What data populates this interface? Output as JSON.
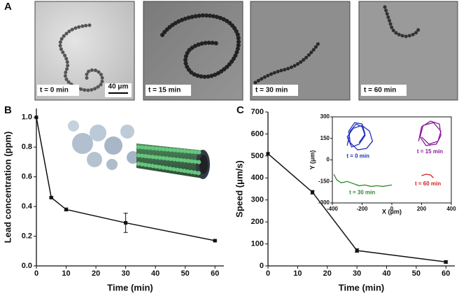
{
  "panel_a": {
    "label": "A",
    "captions": [
      "t = 0 min",
      "t = 15 min",
      "t = 30 min",
      "t = 60 min"
    ],
    "scale_bar": "40 μm"
  },
  "panel_labels": [
    "B",
    "C"
  ],
  "chart_data": [
    {
      "type": "line",
      "xlabel": "Time (min)",
      "ylabel": "Lead concentration (ppm)",
      "x": [
        0,
        5,
        10,
        30,
        60
      ],
      "values": [
        1.0,
        0.46,
        0.38,
        0.29,
        0.17
      ],
      "errors": [
        null,
        0.005,
        0.01,
        0.065,
        0.005
      ],
      "color": "#111111",
      "xlim": [
        0,
        63
      ],
      "ylim": [
        0,
        1.06
      ],
      "xticks": [
        0,
        10,
        20,
        30,
        40,
        50,
        60
      ],
      "yticks": [
        {
          "value": 0,
          "label": "0.0"
        },
        {
          "value": 0.2,
          "label": "0.2"
        },
        {
          "value": 0.4,
          "label": "0.4"
        },
        {
          "value": 0.6,
          "label": "0.6"
        },
        {
          "value": 0.8,
          "label": "0.8"
        },
        {
          "value": 1,
          "label": "1.0"
        }
      ]
    },
    {
      "type": "line",
      "xlabel": "Time (min)",
      "ylabel": "Speed (μm/s)",
      "x": [
        0,
        15,
        30,
        60
      ],
      "values": [
        510,
        335,
        70,
        18
      ],
      "errors": [
        null,
        8,
        8,
        6
      ],
      "color": "#111111",
      "xlim": [
        0,
        63
      ],
      "ylim": [
        0,
        700
      ],
      "xticks": [
        0,
        10,
        20,
        30,
        40,
        50,
        60
      ],
      "yticks": [
        0,
        100,
        200,
        300,
        400,
        500,
        600,
        700
      ]
    },
    {
      "type": "line",
      "frame": true,
      "xlabel": "X (μm)",
      "ylabel": "Y (μm)",
      "xlim": [
        -400,
        400
      ],
      "ylim": [
        -300,
        300
      ],
      "xticks": [
        -400,
        -200,
        0,
        200,
        400
      ],
      "yticks": [
        -300,
        -150,
        0,
        150,
        300
      ],
      "series": [
        {
          "name": "t = 0 min",
          "color": "#1f2fbf",
          "x": [
            -300,
            -280,
            -240,
            -200,
            -180,
            -220,
            -270,
            -300,
            -260,
            -200,
            -150,
            -130,
            -170,
            -230,
            -280,
            -290,
            -250,
            -200,
            -180,
            -220
          ],
          "y": [
            100,
            200,
            250,
            230,
            170,
            110,
            90,
            160,
            220,
            240,
            200,
            130,
            80,
            70,
            120,
            200,
            260,
            250,
            180,
            120
          ]
        },
        {
          "name": "t = 15 min",
          "color": "#8a1a9a",
          "x": [
            180,
            200,
            260,
            320,
            330,
            300,
            230,
            190,
            210,
            280,
            330,
            310,
            250,
            200
          ],
          "y": [
            130,
            230,
            270,
            250,
            170,
            110,
            100,
            160,
            240,
            260,
            200,
            130,
            110,
            160
          ]
        },
        {
          "name": "t = 30 min",
          "color": "#2a8a2a",
          "x": [
            -390,
            -370,
            -340,
            -300,
            -260,
            -220,
            -180,
            -140,
            -100,
            -60,
            -30,
            0
          ],
          "y": [
            -100,
            -140,
            -160,
            -150,
            -165,
            -180,
            -175,
            -185,
            -180,
            -185,
            -180,
            -175
          ]
        },
        {
          "name": "t = 60 min",
          "color": "#d02020",
          "x": [
            200,
            230,
            260,
            280
          ],
          "y": [
            -110,
            -100,
            -105,
            -125
          ]
        }
      ]
    }
  ]
}
